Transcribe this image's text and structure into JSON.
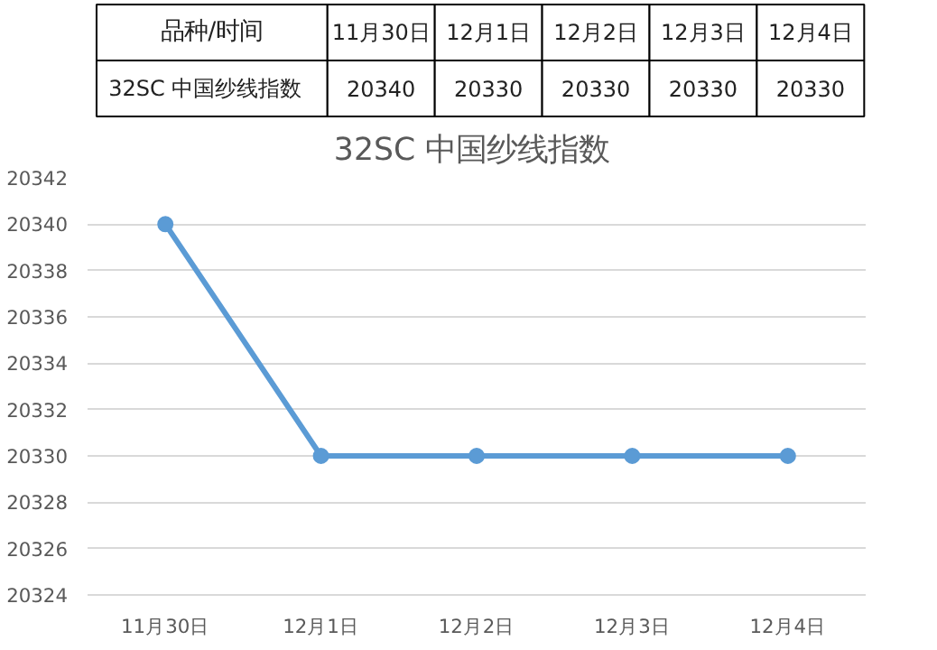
{
  "chart_data": [
    {
      "type": "other",
      "annotations": [
        "品种/时间"
      ],
      "categories": [
        "11月30日",
        "12月1日",
        "12月2日",
        "12月3日",
        "12月4日"
      ],
      "series": [
        {
          "name": "32SC   中国纱线指数",
          "values": [
            20340,
            20330,
            20330,
            20330,
            20330
          ]
        }
      ],
      "data_labels": true
    },
    {
      "type": "line",
      "title": "32SC  中国纱线指数",
      "categories": [
        "11月30日",
        "12月1日",
        "12月2日",
        "12月3日",
        "12月4日"
      ],
      "series": [
        {
          "color": "#5b9bd5",
          "values": [
            20340,
            20330,
            20330,
            20330,
            20330
          ]
        }
      ],
      "ylim": [
        20324,
        20342
      ],
      "yticks": [
        20324,
        20326,
        20328,
        20330,
        20332,
        20334,
        20336,
        20338,
        20340,
        20342
      ],
      "grid": "y",
      "marker": "circle",
      "line_style": "solid"
    }
  ]
}
